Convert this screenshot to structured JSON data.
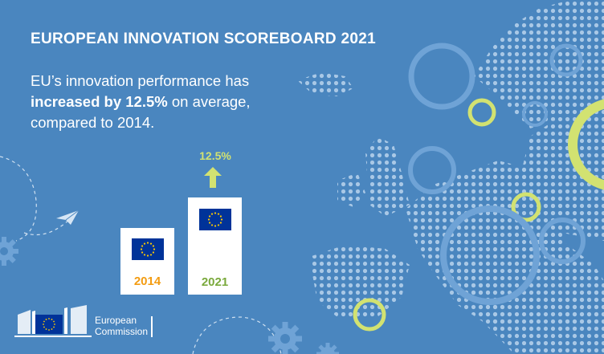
{
  "header": {
    "title": "EUROPEAN INNOVATION SCOREBOARD 2021"
  },
  "body": {
    "line1": "EU’s innovation performance has",
    "line2_bold": "increased by 12.5%",
    "line2_rest": " on average,",
    "line3": "compared to 2014."
  },
  "comparison": {
    "increase_label": "12.5%",
    "bars": [
      {
        "year": "2014",
        "relative_value": 100
      },
      {
        "year": "2021",
        "relative_value": 112.5
      }
    ]
  },
  "footer": {
    "logo_line1": "European",
    "logo_line2": "Commission"
  },
  "colors": {
    "background": "#4a86bf",
    "accent_lime": "#d2e271",
    "year_2014": "#f39c12",
    "year_2021": "#7aa93c",
    "eu_blue": "#003399",
    "eu_yellow": "#ffcc00"
  },
  "icons": [
    "paper-plane-icon",
    "gear-icon",
    "arrow-up-icon",
    "eu-flag-icon",
    "europe-dot-map"
  ]
}
